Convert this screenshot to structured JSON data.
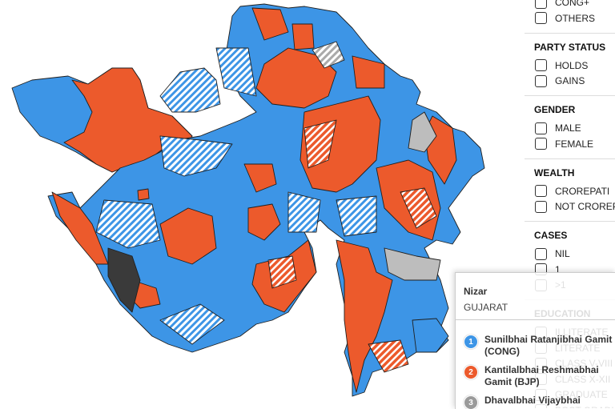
{
  "filters": {
    "party_options": [
      "CONG+",
      "OTHERS"
    ],
    "sections": [
      {
        "title": "PARTY STATUS",
        "options": [
          "HOLDS",
          "GAINS"
        ]
      },
      {
        "title": "GENDER",
        "options": [
          "MALE",
          "FEMALE"
        ]
      },
      {
        "title": "WEALTH",
        "options": [
          "CROREPATI",
          "NOT CROREPATI"
        ]
      },
      {
        "title": "CASES",
        "options": [
          "NIL",
          "1",
          ">1"
        ]
      },
      {
        "title": "EDUCATION",
        "options": [
          "ILLITERATE",
          "LITERATE",
          "CLASS V-VIII",
          "CLASS X-XII",
          "GRADUATE",
          "POST GRADUATE"
        ]
      }
    ]
  },
  "tooltip": {
    "constituency": "Nizar",
    "state": "GUJARAT",
    "candidates": [
      {
        "rank": 1,
        "name": "Sunilbhai Ratanjibhai Gamit (CONG)",
        "color": "#3d95e6"
      },
      {
        "rank": 2,
        "name": "Kantilalbhai Reshmabhai Gamit (BJP)",
        "color": "#ec5a2c"
      },
      {
        "rank": 3,
        "name": "Dhavalbhai Vijaybhai",
        "color": "#9a9a9a"
      }
    ]
  }
}
